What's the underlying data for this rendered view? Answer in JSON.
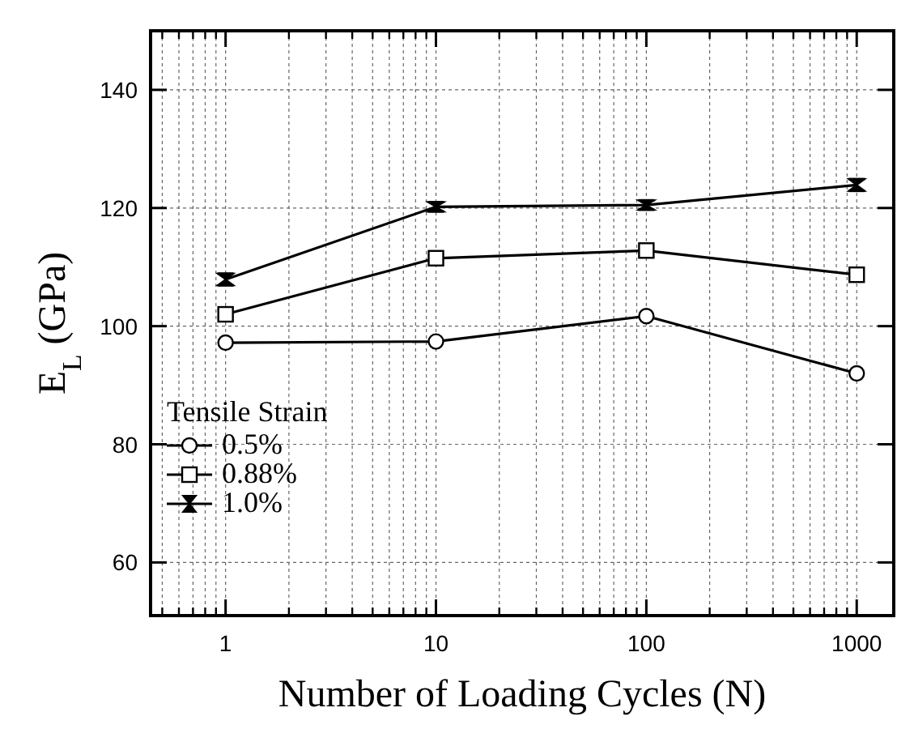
{
  "chart_data": {
    "type": "line",
    "xlabel": "Number of Loading Cycles (N)",
    "ylabel": "E$_{L}$ (GPa)",
    "legend_title": "Tensile Strain",
    "log": "x",
    "x": [
      1,
      10,
      100,
      1000
    ],
    "xlim": [
      0.44,
      1500
    ],
    "xticks": [
      1,
      10,
      100,
      1000
    ],
    "ylim": [
      51,
      150
    ],
    "yticks": [
      60,
      80,
      100,
      120,
      140
    ],
    "grid": true,
    "legend": "left",
    "line_style": "solid",
    "series": [
      {
        "name": "0.5%",
        "color": "#000000",
        "marker": "circle",
        "values": [
          97.2,
          97.4,
          101.7,
          92.0
        ]
      },
      {
        "name": "0.88%",
        "color": "#000000",
        "marker": "square",
        "values": [
          102,
          111.5,
          112.8,
          108.7
        ]
      },
      {
        "name": "1.0%",
        "color": "#000000",
        "marker": "none",
        "values": [
          107.9,
          120.2,
          120.5,
          123.9
        ],
        "errors": [
          1,
          0.8,
          0.8,
          1
        ]
      }
    ]
  }
}
